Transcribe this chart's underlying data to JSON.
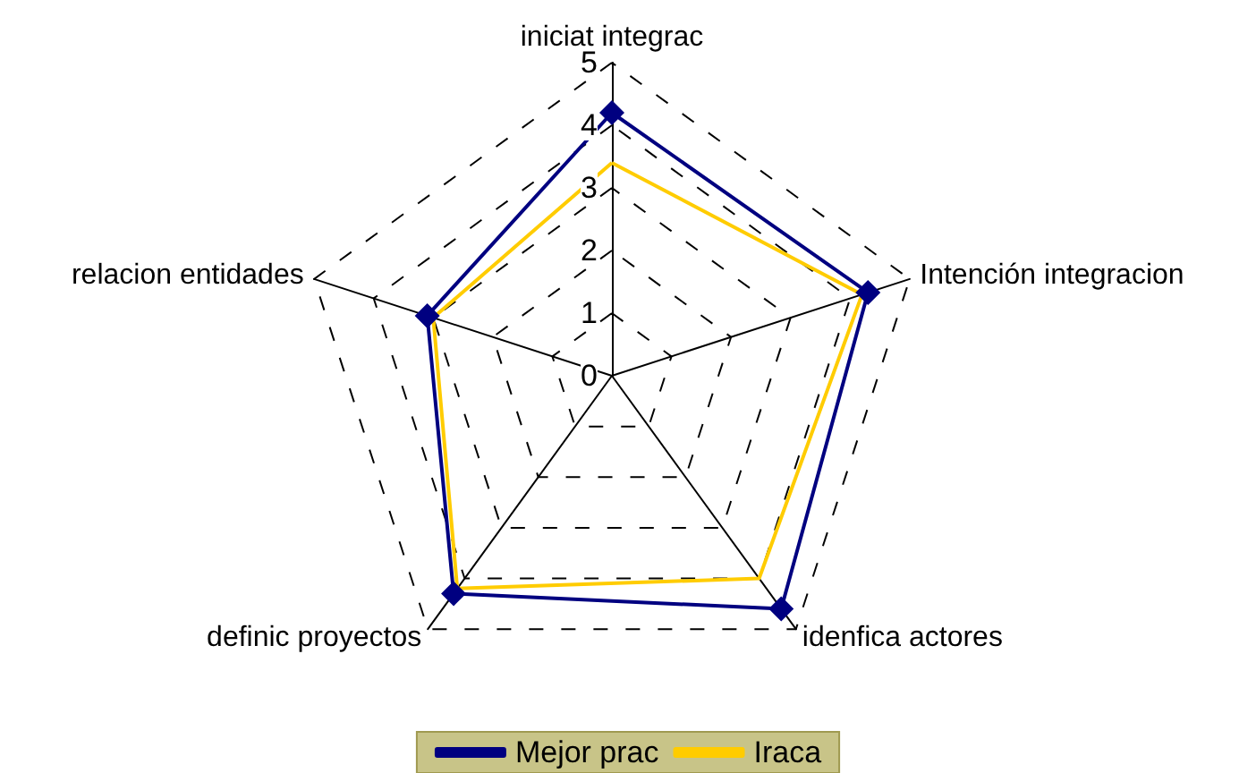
{
  "chart_data": {
    "type": "radar",
    "categories": [
      "iniciat integrac",
      "Intención integracion",
      "idenfica actores",
      "definic proyectos",
      "relacion entidades"
    ],
    "series": [
      {
        "name": "Mejor prac",
        "color": "#000080",
        "marker": "diamond",
        "values": [
          4.2,
          4.3,
          4.6,
          4.3,
          3.1
        ]
      },
      {
        "name": "Iraca",
        "color": "#ffcc00",
        "marker": "none",
        "values": [
          3.4,
          4.2,
          4.0,
          4.2,
          3.0
        ]
      }
    ],
    "ylim": [
      0,
      5
    ],
    "yticks": [
      0,
      1,
      2,
      3,
      4,
      5
    ],
    "grid": true,
    "legend": "bottom"
  }
}
